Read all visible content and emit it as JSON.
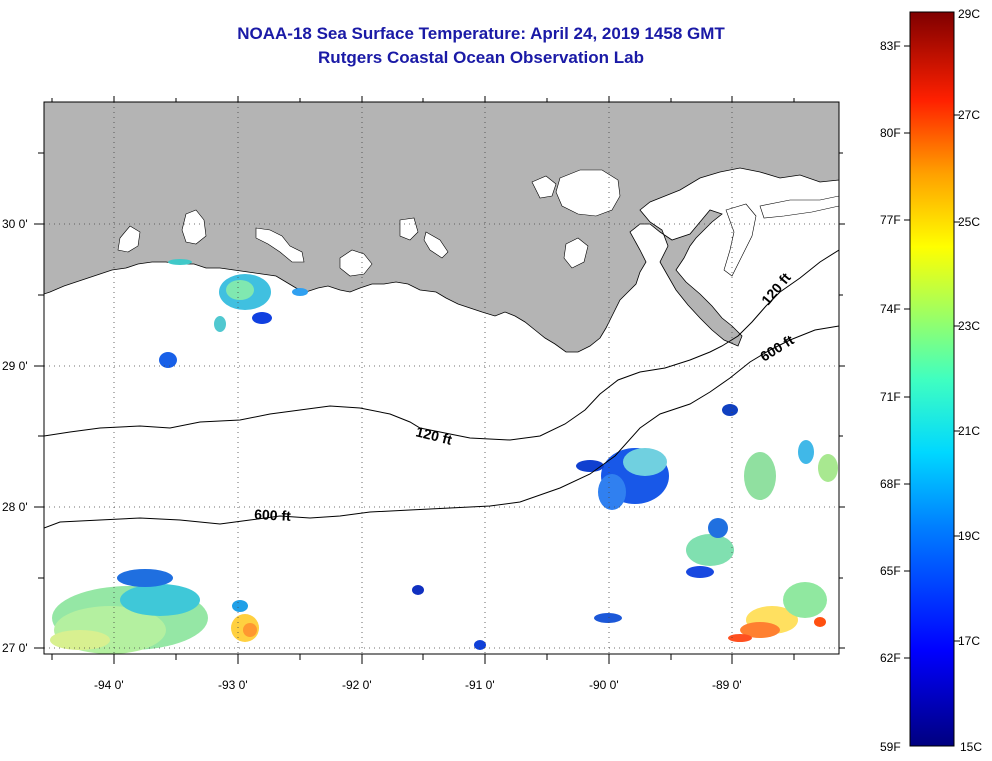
{
  "title": "NOAA-18 Sea Surface Temperature:  April 24, 2019 1458 GMT",
  "subtitle": "Rutgers Coastal Ocean Observation Lab",
  "axes": {
    "lon_labels": [
      "-94 0'",
      "-93 0'",
      "-92 0'",
      "-91 0'",
      "-90 0'",
      "-89 0'"
    ],
    "lat_labels": [
      "30 0'",
      "29 0'",
      "28 0'",
      "27 0'"
    ]
  },
  "contours": {
    "c120_west": "120 ft",
    "c600_west": "600 ft",
    "c120_east": "120 ft",
    "c600_east": "600 ft"
  },
  "colorbar": {
    "fahrenheit": [
      "83F",
      "80F",
      "77F",
      "74F",
      "71F",
      "68F",
      "65F",
      "62F",
      "59F"
    ],
    "celsius": [
      "29C",
      "27C",
      "25C",
      "23C",
      "21C",
      "19C",
      "17C",
      "15C"
    ]
  },
  "colors": {
    "land": "#b4b4b4",
    "title": "#1a1aa6",
    "scale_cold": "#00007f",
    "scale_cool": "#0000ff",
    "scale_mid_cold": "#00c8ff",
    "scale_mid": "#7dff7d",
    "scale_warm": "#ffff00",
    "scale_hot": "#ff7f00",
    "scale_hotter": "#ff0000",
    "scale_max": "#7f0000"
  }
}
